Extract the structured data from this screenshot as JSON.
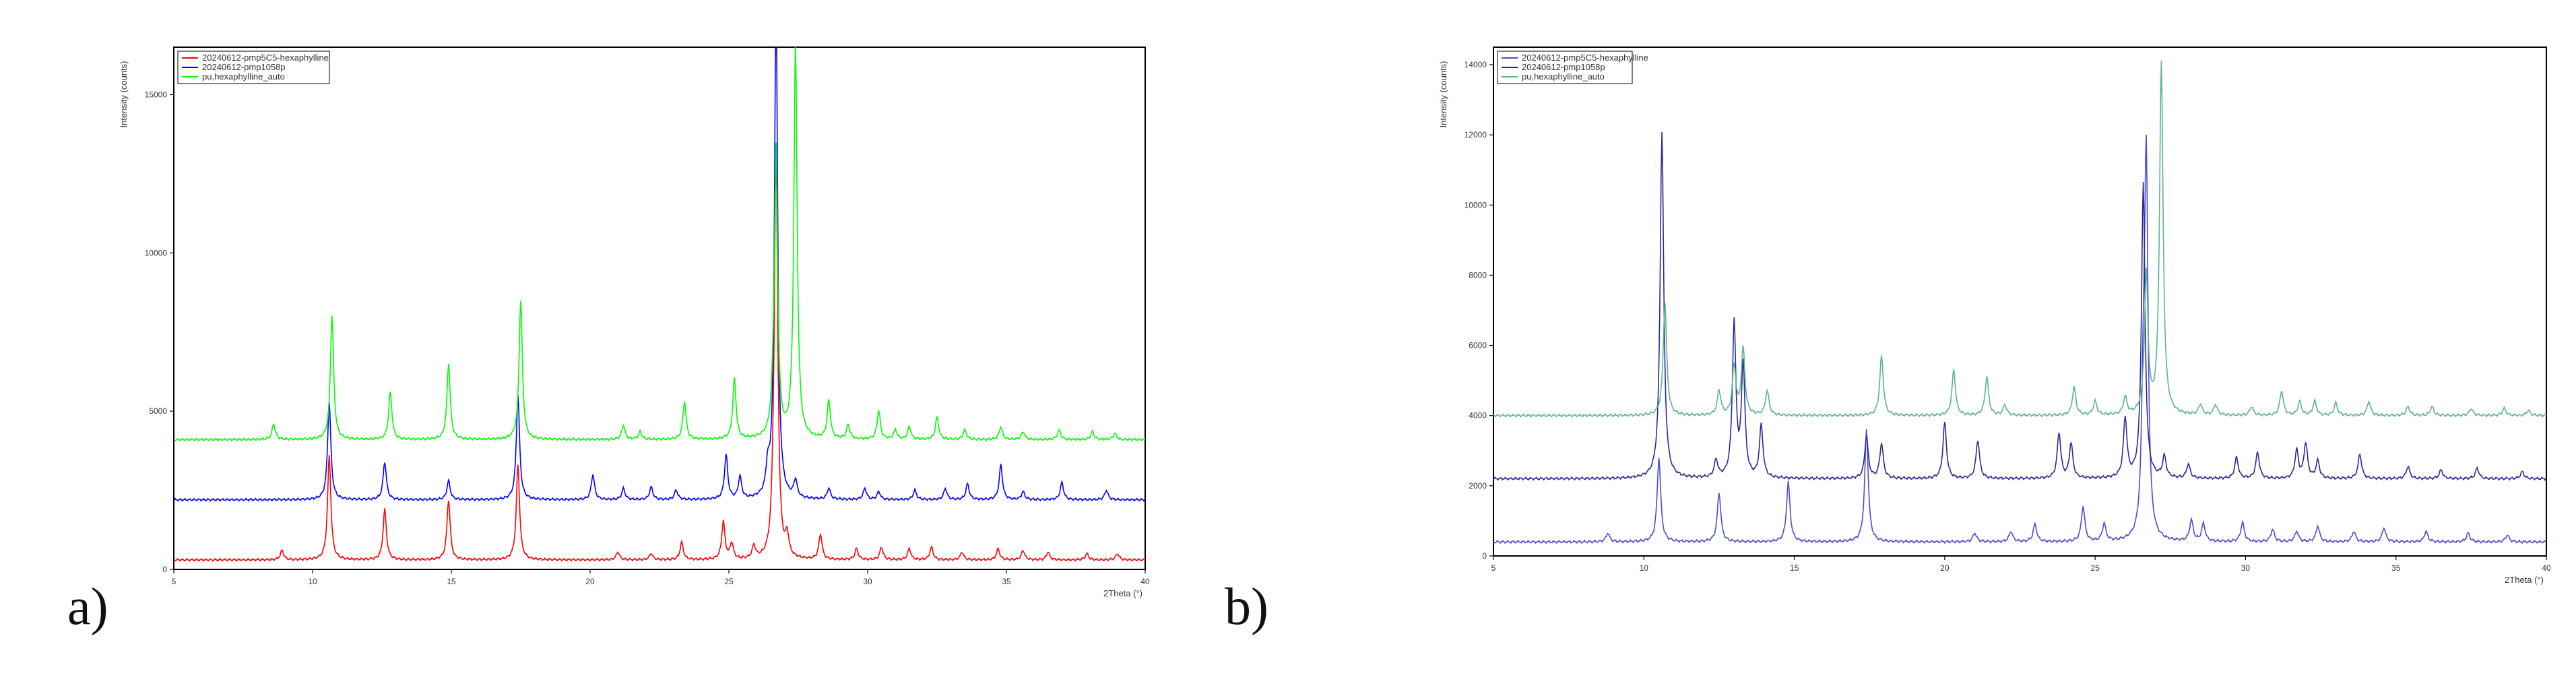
{
  "panel_labels": {
    "a": "a)",
    "b": "b)"
  },
  "chart_data": [
    {
      "type": "line",
      "title": "",
      "xlabel": "2Theta (°)",
      "ylabel": "Intensity (counts)",
      "xlim": [
        5,
        40
      ],
      "ylim": [
        0,
        16500
      ],
      "x_ticks": [
        "5",
        "10",
        "15",
        "20",
        "25",
        "30",
        "35",
        "40"
      ],
      "y_ticks": [
        "0",
        "5000",
        "10000",
        "15000"
      ],
      "y_tick_values": [
        0,
        5000,
        10000,
        15000
      ],
      "legend_position": "top-left",
      "colors": {
        "red": "#ff0000",
        "blue": "#0000ff",
        "green": "#00ff00"
      },
      "series": [
        {
          "name": "20240612-pmp5C5-hexaphylline",
          "color": "#ff0000",
          "baseline": 300,
          "peaks": [
            [
              8.9,
              300
            ],
            [
              10.6,
              3300
            ],
            [
              12.6,
              1600
            ],
            [
              14.9,
              1900
            ],
            [
              17.4,
              3000
            ],
            [
              21.0,
              250
            ],
            [
              22.2,
              200
            ],
            [
              23.3,
              550
            ],
            [
              25.1,
              500
            ],
            [
              24.8,
              1200
            ],
            [
              25.9,
              400
            ],
            [
              26.6,
              800
            ],
            [
              26.7,
              12800
            ],
            [
              27.1,
              650
            ],
            [
              28.3,
              800
            ],
            [
              29.6,
              350
            ],
            [
              30.5,
              400
            ],
            [
              31.5,
              350
            ],
            [
              32.3,
              400
            ],
            [
              33.4,
              250
            ],
            [
              34.7,
              350
            ],
            [
              35.6,
              300
            ],
            [
              36.5,
              250
            ],
            [
              37.9,
              200
            ],
            [
              39.0,
              200
            ]
          ]
        },
        {
          "name": "20240612-pmp1058p",
          "color": "#0000ff",
          "baseline": 2200,
          "peaks": [
            [
              10.6,
              3100
            ],
            [
              12.6,
              1200
            ],
            [
              14.9,
              600
            ],
            [
              17.4,
              3300
            ],
            [
              20.1,
              800
            ],
            [
              21.2,
              350
            ],
            [
              22.2,
              400
            ],
            [
              23.1,
              300
            ],
            [
              24.9,
              1400
            ],
            [
              25.4,
              700
            ],
            [
              26.4,
              800
            ],
            [
              26.7,
              15600
            ],
            [
              27.4,
              550
            ],
            [
              28.6,
              350
            ],
            [
              29.9,
              350
            ],
            [
              30.4,
              250
            ],
            [
              31.7,
              300
            ],
            [
              32.8,
              350
            ],
            [
              33.6,
              500
            ],
            [
              34.8,
              1100
            ],
            [
              35.6,
              250
            ],
            [
              37.0,
              550
            ],
            [
              38.6,
              300
            ]
          ]
        },
        {
          "name": "pu,hexaphylline_auto",
          "color": "#00ff00",
          "baseline": 4100,
          "peaks": [
            [
              8.6,
              500
            ],
            [
              10.7,
              3900
            ],
            [
              12.8,
              1500
            ],
            [
              14.9,
              2400
            ],
            [
              17.5,
              4400
            ],
            [
              21.2,
              450
            ],
            [
              21.8,
              250
            ],
            [
              23.4,
              1200
            ],
            [
              25.2,
              1900
            ],
            [
              26.6,
              700
            ],
            [
              26.7,
              9000
            ],
            [
              27.4,
              12500
            ],
            [
              28.6,
              1200
            ],
            [
              29.3,
              450
            ],
            [
              30.4,
              900
            ],
            [
              31.0,
              300
            ],
            [
              31.5,
              400
            ],
            [
              32.5,
              700
            ],
            [
              33.5,
              300
            ],
            [
              34.8,
              400
            ],
            [
              35.6,
              250
            ],
            [
              36.9,
              300
            ],
            [
              38.1,
              250
            ],
            [
              38.9,
              200
            ]
          ]
        }
      ]
    },
    {
      "type": "line",
      "title": "",
      "xlabel": "2Theta (°)",
      "ylabel": "Intensity (counts)",
      "xlim": [
        5,
        40
      ],
      "ylim": [
        0,
        14500
      ],
      "x_ticks": [
        "5",
        "10",
        "15",
        "20",
        "25",
        "30",
        "35",
        "40"
      ],
      "y_ticks": [
        "0",
        "2000",
        "4000",
        "6000",
        "8000",
        "10000",
        "12000",
        "14000"
      ],
      "y_tick_values": [
        0,
        2000,
        4000,
        6000,
        8000,
        10000,
        12000,
        14000
      ],
      "legend_position": "top-left",
      "colors": {
        "blue": "#4b4bd6",
        "navy": "#2a2a96",
        "green": "#5ab48c"
      },
      "series": [
        {
          "name": "20240612-pmp5C5-hexaphylline",
          "color": "#4b4bd6",
          "baseline": 400,
          "peaks": [
            [
              8.8,
              250
            ],
            [
              10.5,
              2400
            ],
            [
              12.5,
              1400
            ],
            [
              14.8,
              1700
            ],
            [
              17.4,
              3200
            ],
            [
              21.0,
              250
            ],
            [
              22.2,
              300
            ],
            [
              23.0,
              500
            ],
            [
              24.6,
              1000
            ],
            [
              25.3,
              500
            ],
            [
              26.6,
              3000
            ],
            [
              26.7,
              10600
            ],
            [
              28.2,
              600
            ],
            [
              28.6,
              500
            ],
            [
              29.9,
              550
            ],
            [
              30.9,
              350
            ],
            [
              31.7,
              300
            ],
            [
              32.4,
              450
            ],
            [
              33.6,
              300
            ],
            [
              34.6,
              400
            ],
            [
              36.0,
              300
            ],
            [
              37.4,
              250
            ],
            [
              38.7,
              200
            ]
          ]
        },
        {
          "name": "20240612-pmp1058p",
          "color": "#2a2a96",
          "baseline": 2200,
          "peaks": [
            [
              10.6,
              9900
            ],
            [
              12.4,
              500
            ],
            [
              13.0,
              4400
            ],
            [
              13.3,
              3200
            ],
            [
              13.9,
              1500
            ],
            [
              17.4,
              1200
            ],
            [
              17.9,
              1000
            ],
            [
              20.0,
              1600
            ],
            [
              21.1,
              1100
            ],
            [
              23.8,
              1300
            ],
            [
              24.2,
              1000
            ],
            [
              26.0,
              1700
            ],
            [
              26.6,
              8400
            ],
            [
              27.3,
              600
            ],
            [
              28.1,
              400
            ],
            [
              29.7,
              600
            ],
            [
              30.4,
              750
            ],
            [
              31.7,
              800
            ],
            [
              32.0,
              1000
            ],
            [
              32.4,
              500
            ],
            [
              33.8,
              700
            ],
            [
              35.4,
              350
            ],
            [
              36.5,
              250
            ],
            [
              37.7,
              300
            ],
            [
              39.2,
              200
            ]
          ]
        },
        {
          "name": "pu,hexaphylline_auto",
          "color": "#5ab48c",
          "baseline": 4000,
          "peaks": [
            [
              10.7,
              3200
            ],
            [
              12.5,
              700
            ],
            [
              13.0,
              1400
            ],
            [
              13.3,
              1900
            ],
            [
              14.1,
              700
            ],
            [
              17.9,
              1700
            ],
            [
              20.3,
              1300
            ],
            [
              21.4,
              1100
            ],
            [
              22.0,
              300
            ],
            [
              24.3,
              800
            ],
            [
              25.0,
              400
            ],
            [
              26.0,
              500
            ],
            [
              26.7,
              4000
            ],
            [
              27.2,
              10000
            ],
            [
              28.5,
              300
            ],
            [
              29.0,
              300
            ],
            [
              30.2,
              250
            ],
            [
              31.2,
              700
            ],
            [
              31.8,
              400
            ],
            [
              32.3,
              400
            ],
            [
              33.0,
              350
            ],
            [
              34.1,
              400
            ],
            [
              35.4,
              250
            ],
            [
              36.2,
              250
            ],
            [
              37.5,
              200
            ],
            [
              38.6,
              200
            ],
            [
              39.4,
              150
            ]
          ]
        }
      ]
    }
  ]
}
